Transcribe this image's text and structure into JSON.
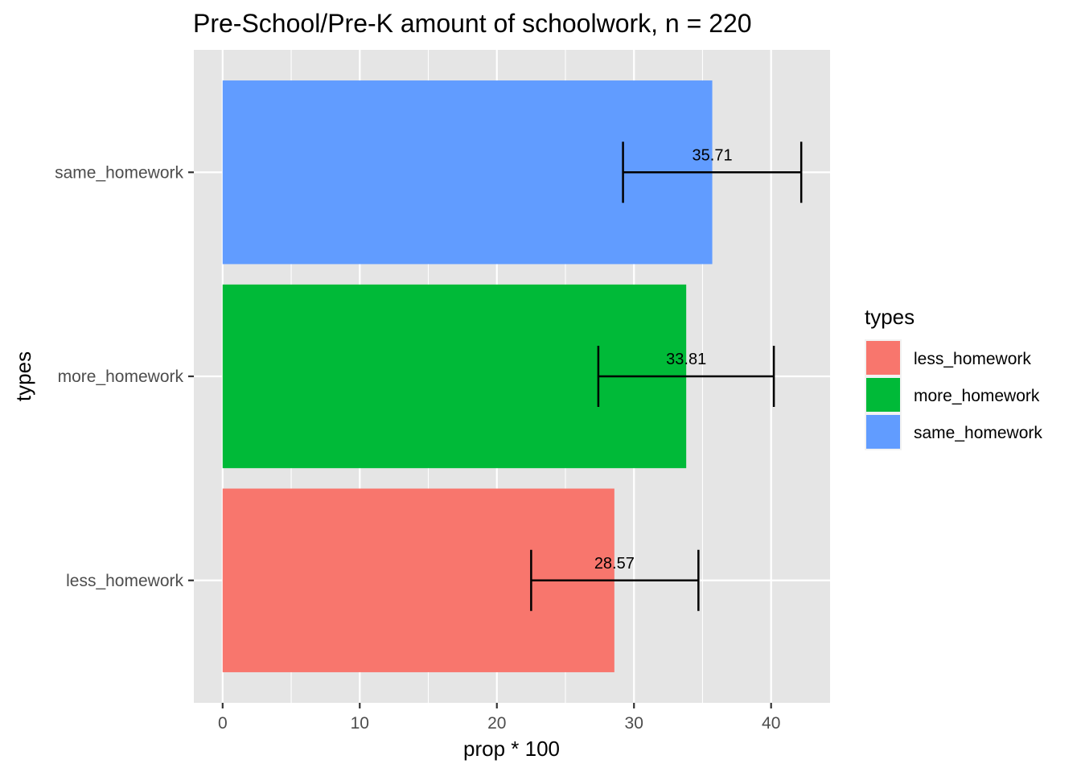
{
  "chart_data": {
    "type": "bar",
    "orientation": "horizontal",
    "title": "Pre-School/Pre-K amount of schoolwork, n = 220",
    "xlabel": "prop * 100",
    "ylabel": "types",
    "categories": [
      "less_homework",
      "more_homework",
      "same_homework"
    ],
    "values": [
      28.57,
      33.81,
      35.71
    ],
    "data_labels": [
      "28.57",
      "33.81",
      "35.71"
    ],
    "error_bars": [
      {
        "lower": 22.5,
        "upper": 34.7
      },
      {
        "lower": 27.4,
        "upper": 40.2
      },
      {
        "lower": 29.2,
        "upper": 42.2
      }
    ],
    "colors": [
      "#F8766D",
      "#00BA38",
      "#619CFF"
    ],
    "xlim": [
      -2.1,
      44.3
    ],
    "xticks": [
      0,
      10,
      20,
      30,
      40
    ],
    "xtick_labels": [
      "0",
      "10",
      "20",
      "30",
      "40"
    ],
    "grid": true,
    "legend": {
      "title": "types",
      "position": "right",
      "entries": [
        "less_homework",
        "more_homework",
        "same_homework"
      ]
    },
    "panel_background": "#E5E5E5",
    "grid_color": "#FFFFFF"
  }
}
